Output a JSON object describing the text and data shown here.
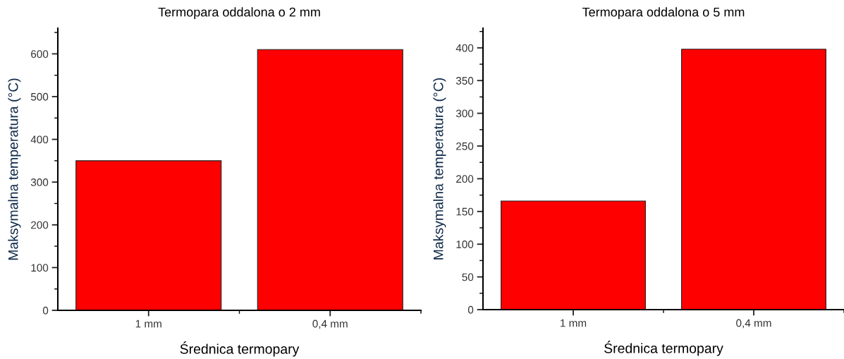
{
  "chart_data": [
    {
      "type": "bar",
      "title": "Termopara oddalona o 2 mm",
      "xlabel": "Średnica termopary",
      "ylabel": "Maksymalna temperatura (°C)",
      "categories": [
        "1 mm",
        "0,4 mm"
      ],
      "values": [
        350,
        610
      ],
      "color": "#ff0000",
      "ylim": [
        0,
        660
      ],
      "yticks": [
        0,
        100,
        200,
        300,
        400,
        500,
        600
      ],
      "grid": false,
      "legend": false
    },
    {
      "type": "bar",
      "title": "Termopara oddalona o 5 mm",
      "xlabel": "Średnica termopary",
      "ylabel": "Maksymalna temperatura (°C)",
      "categories": [
        "1 mm",
        "0,4 mm"
      ],
      "values": [
        166,
        398
      ],
      "color": "#ff0000",
      "ylim": [
        0,
        430
      ],
      "yticks": [
        0,
        50,
        100,
        150,
        200,
        250,
        300,
        350,
        400
      ],
      "grid": false,
      "legend": false
    }
  ]
}
